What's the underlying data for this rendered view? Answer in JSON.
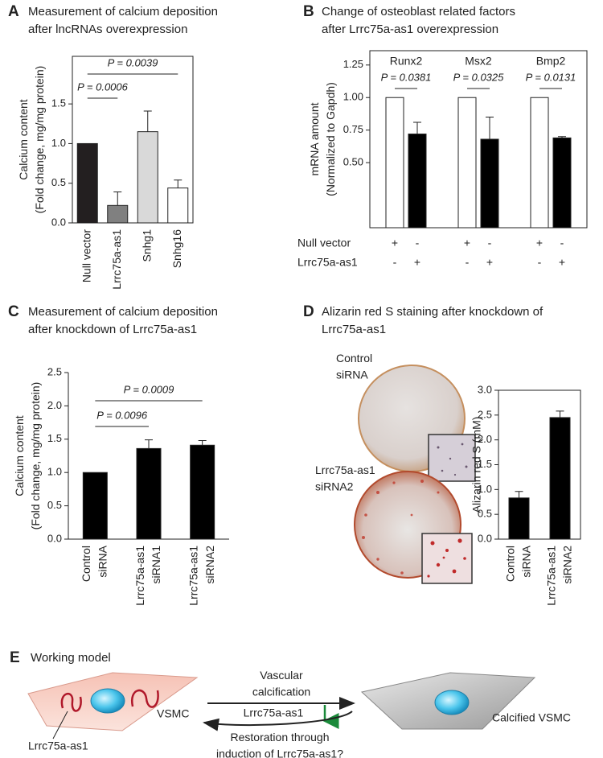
{
  "chart_data": [
    {
      "type": "bar",
      "panel": "A",
      "title": "Measurement of calcium deposition\nafter lncRNAs overexpression",
      "ylabel": "Calcium content\n(Fold change, mg/mg protein)",
      "categories": [
        "Null vector",
        "Lrrc75a-as1",
        "Snhg1",
        "Snhg16"
      ],
      "values": [
        1.0,
        0.22,
        1.15,
        0.44
      ],
      "errors": [
        null,
        0.17,
        0.26,
        0.1
      ],
      "colors": [
        "#231f20",
        "#808080",
        "#d9d9d9",
        "#ffffff"
      ],
      "ylim": [
        0,
        2.1
      ],
      "yticks": [
        {
          "value": 0,
          "label": "0.0"
        },
        0.5,
        {
          "value": 1,
          "label": "1.0"
        },
        1.5
      ],
      "annotations": [
        "P = 0.0006",
        "P = 0.0039"
      ]
    },
    {
      "type": "grouped_bar",
      "panel": "B",
      "title": "Change of osteoblast related factors\nafter Lrrc75a-as1 overexpression",
      "ylabel": "mRNA amount\n(Normalized to Gapdh)",
      "categories": [
        "Runx2",
        "Msx2",
        "Bmp2"
      ],
      "series": [
        {
          "name": "Null vector",
          "color": "#ffffff",
          "values": [
            1.0,
            1.0,
            1.0
          ],
          "errors": [
            null,
            null,
            null
          ],
          "signs": [
            "+",
            "-"
          ]
        },
        {
          "name": "Lrrc75a-as1",
          "color": "#000000",
          "values": [
            0.72,
            0.68,
            0.69
          ],
          "errors": [
            0.09,
            0.17,
            0.01
          ],
          "signs": [
            "-",
            "+"
          ]
        }
      ],
      "ylim": [
        0,
        1.36
      ],
      "yticks": [
        {
          "value": 0.5,
          "label": "0.50"
        },
        {
          "value": 0.75,
          "label": "0.75"
        },
        {
          "value": 1,
          "label": "1.00"
        },
        {
          "value": 1.25,
          "label": "1.25"
        }
      ],
      "annotations": [
        "P = 0.0381",
        "P = 0.0325",
        "P = 0.0131"
      ]
    },
    {
      "type": "bar",
      "panel": "C",
      "title": "Measurement of calcium deposition\nafter knockdown of Lrrc75a-as1",
      "ylabel": "Calcium content\n(Fold change, mg/mg protein)",
      "categories": [
        "Control\nsiRNA",
        "Lrrc75a-as1\nsiRNA1",
        "Lrrc75a-as1\nsiRNA2"
      ],
      "values": [
        1.0,
        1.36,
        1.41
      ],
      "errors": [
        null,
        0.13,
        0.07
      ],
      "color": "#000000",
      "ylim": [
        0,
        2.5
      ],
      "yticks": [
        {
          "value": 0,
          "label": "0.0"
        },
        0.5,
        {
          "value": 1,
          "label": "1.0"
        },
        1.5,
        {
          "value": 2,
          "label": "2.0"
        },
        2.5
      ],
      "annotations": [
        "P = 0.0096",
        "P = 0.0009"
      ]
    },
    {
      "type": "bar",
      "panel": "D",
      "title": "Alizarin red S staining after knockdown of\nLrrc75a-as1",
      "ylabel": "Alizarin red S (mM)",
      "categories": [
        "Control\nsiRNA",
        "Lrrc75a-as1\nsiRNA2"
      ],
      "values": [
        0.83,
        2.45
      ],
      "errors": [
        0.13,
        0.13
      ],
      "color": "#000000",
      "ylim": [
        0,
        3.0
      ],
      "yticks": [
        {
          "value": 0,
          "label": "0.0"
        },
        0.5,
        {
          "value": 1,
          "label": "1.0"
        },
        1.5,
        {
          "value": 2,
          "label": "2.0"
        },
        2.5,
        {
          "value": 3,
          "label": "3.0"
        }
      ]
    }
  ],
  "panel_d_images": {
    "labels": [
      "Control\nsiRNA",
      "Lrrc75a-as1\nsiRNA2"
    ]
  },
  "working_model": {
    "panel": "E",
    "title": "Working model",
    "forward_label": "Vascular\ncalcification",
    "down_label": "Lrrc75a-as1",
    "cell_label": "VSMC",
    "rna_label": "Lrrc75a-as1",
    "calcified_label": "Calcified VSMC",
    "reverse_label": "Restoration through\ninduction of  Lrrc75a-as1?"
  }
}
